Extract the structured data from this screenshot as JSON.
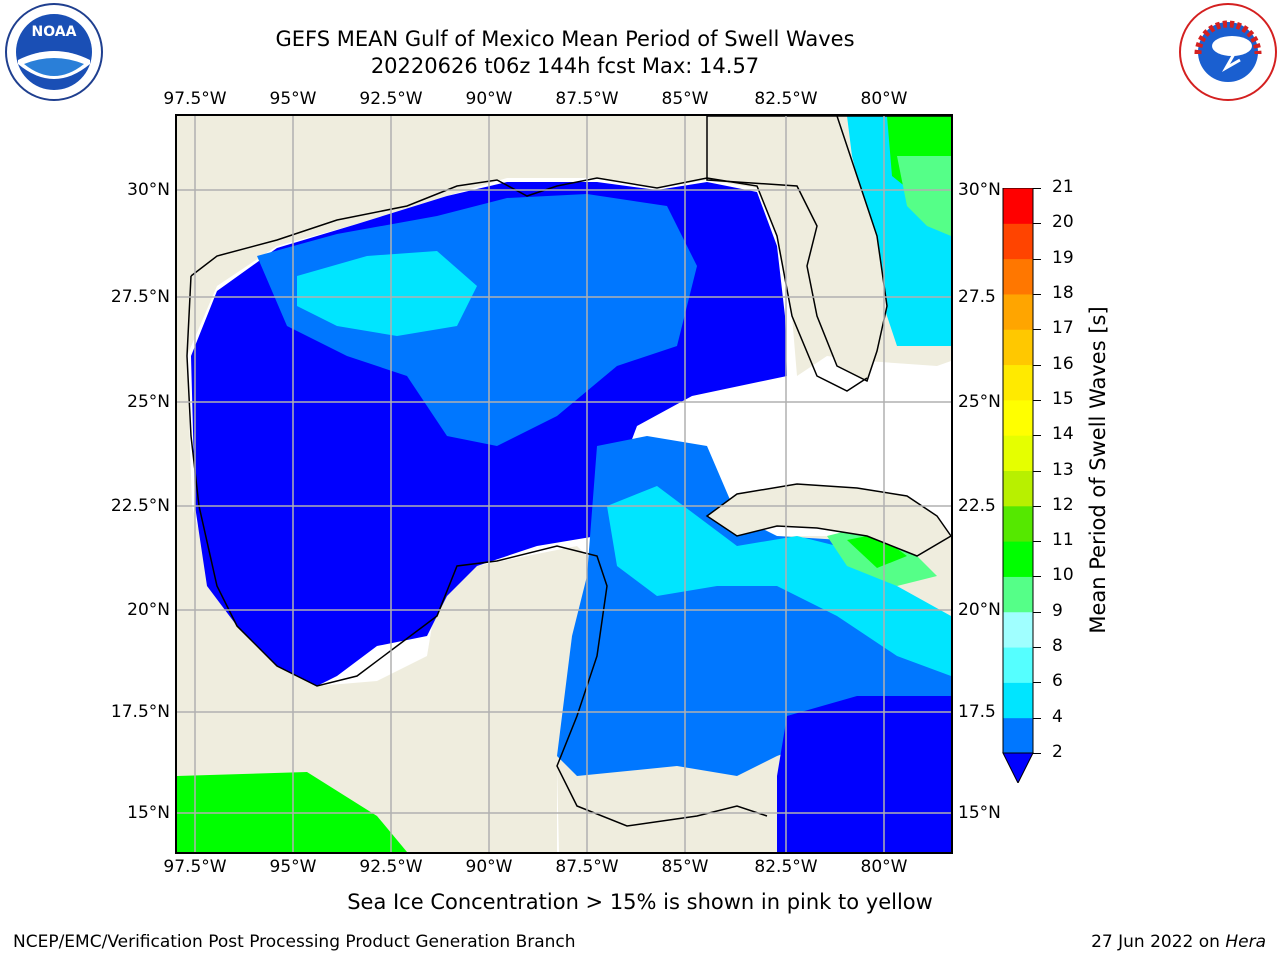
{
  "title": {
    "line1": "GEFS MEAN Gulf of Mexico Mean Period of Swell Waves",
    "line2": "20220626 t06z 144h fcst   Max: 14.57"
  },
  "map": {
    "lon_labels": [
      "97.5°W",
      "95°W",
      "92.5°W",
      "90°W",
      "87.5°W",
      "85°W",
      "82.5°W",
      "80°W"
    ],
    "lat_labels_left": [
      "30°N",
      "27.5°N",
      "25°N",
      "22.5°N",
      "20°N",
      "17.5°N",
      "15°N"
    ],
    "lat_labels_right": [
      "30°N",
      "27.5",
      "25°N",
      "22.5",
      "20°N",
      "17.5",
      "15°N"
    ],
    "land_color": "#efedde",
    "grid_color": "#b0b0b0"
  },
  "colorbar": {
    "label": "Mean Period of Swell Waves [s]",
    "ticks": [
      "2",
      "4",
      "6",
      "8",
      "9",
      "10",
      "11",
      "12",
      "13",
      "14",
      "15",
      "16",
      "17",
      "18",
      "19",
      "20",
      "21"
    ],
    "colors": [
      "#0000ff",
      "#0077ff",
      "#00e5ff",
      "#55ffff",
      "#a0ffff",
      "#55ff88",
      "#00ff00",
      "#55e800",
      "#b8f000",
      "#e5ff00",
      "#ffff00",
      "#ffea00",
      "#ffc800",
      "#ffa500",
      "#ff7700",
      "#ff4400",
      "#ff0000"
    ]
  },
  "footer": {
    "ice_note": "Sea Ice Concentration > 15% is shown in pink to yellow",
    "credit": "NCEP/EMC/Verification Post Processing Product Generation Branch",
    "date": "27 Jun 2022 on ",
    "host": "Hera"
  },
  "logos": {
    "noaa_text": "NOAA",
    "nws_text": "NATIONAL WEATHER SERVICE"
  }
}
